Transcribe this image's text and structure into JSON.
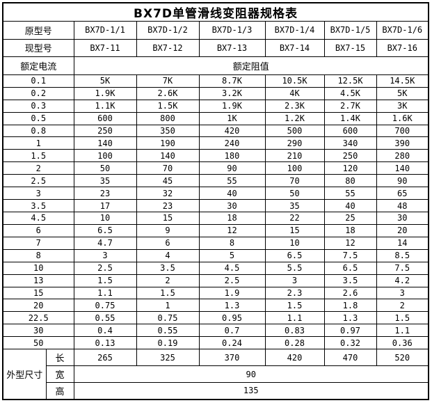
{
  "title": "BX7D单管滑线变阻器规格表",
  "headers": {
    "original_model_label": "原型号",
    "current_model_label": "现型号",
    "rated_current_label": "额定电流",
    "rated_resistance_label": "额定阻值",
    "dimensions_label": "外型尺寸",
    "length_label": "长",
    "width_label": "宽",
    "height_label": "高"
  },
  "original_models": [
    "BX7D-1/1",
    "BX7D-1/2",
    "BX7D-1/3",
    "BX7D-1/4",
    "BX7D-1/5",
    "BX7D-1/6"
  ],
  "current_models": [
    "BX7-11",
    "BX7-12",
    "BX7-13",
    "BX7-14",
    "BX7-15",
    "BX7-16"
  ],
  "resistance_rows": [
    {
      "current": "0.1",
      "values": [
        "5K",
        "7K",
        "8.7K",
        "10.5K",
        "12.5K",
        "14.5K"
      ]
    },
    {
      "current": "0.2",
      "values": [
        "1.9K",
        "2.6K",
        "3.2K",
        "4K",
        "4.5K",
        "5K"
      ]
    },
    {
      "current": "0.3",
      "values": [
        "1.1K",
        "1.5K",
        "1.9K",
        "2.3K",
        "2.7K",
        "3K"
      ]
    },
    {
      "current": "0.5",
      "values": [
        "600",
        "800",
        "1K",
        "1.2K",
        "1.4K",
        "1.6K"
      ]
    },
    {
      "current": "0.8",
      "values": [
        "250",
        "350",
        "420",
        "500",
        "600",
        "700"
      ]
    },
    {
      "current": "1",
      "values": [
        "140",
        "190",
        "240",
        "290",
        "340",
        "390"
      ]
    },
    {
      "current": "1.5",
      "values": [
        "100",
        "140",
        "180",
        "210",
        "250",
        "280"
      ]
    },
    {
      "current": "2",
      "values": [
        "50",
        "70",
        "90",
        "100",
        "120",
        "140"
      ]
    },
    {
      "current": "2.5",
      "values": [
        "35",
        "45",
        "55",
        "70",
        "80",
        "90"
      ]
    },
    {
      "current": "3",
      "values": [
        "23",
        "32",
        "40",
        "50",
        "55",
        "65"
      ]
    },
    {
      "current": "3.5",
      "values": [
        "17",
        "23",
        "30",
        "35",
        "40",
        "48"
      ]
    },
    {
      "current": "4.5",
      "values": [
        "10",
        "15",
        "18",
        "22",
        "25",
        "30"
      ]
    },
    {
      "current": "6",
      "values": [
        "6.5",
        "9",
        "12",
        "15",
        "18",
        "20"
      ]
    },
    {
      "current": "7",
      "values": [
        "4.7",
        "6",
        "8",
        "10",
        "12",
        "14"
      ]
    },
    {
      "current": "8",
      "values": [
        "3",
        "4",
        "5",
        "6.5",
        "7.5",
        "8.5"
      ]
    },
    {
      "current": "10",
      "values": [
        "2.5",
        "3.5",
        "4.5",
        "5.5",
        "6.5",
        "7.5"
      ]
    },
    {
      "current": "13",
      "values": [
        "1.5",
        "2",
        "2.5",
        "3",
        "3.5",
        "4.2"
      ]
    },
    {
      "current": "15",
      "values": [
        "1.1",
        "1.5",
        "1.9",
        "2.3",
        "2.6",
        "3"
      ]
    },
    {
      "current": "20",
      "values": [
        "0.75",
        "1",
        "1.3",
        "1.5",
        "1.8",
        "2"
      ]
    },
    {
      "current": "22.5",
      "values": [
        "0.55",
        "0.75",
        "0.95",
        "1.1",
        "1.3",
        "1.5"
      ]
    },
    {
      "current": "30",
      "values": [
        "0.4",
        "0.55",
        "0.7",
        "0.83",
        "0.97",
        "1.1"
      ]
    },
    {
      "current": "50",
      "values": [
        "0.13",
        "0.19",
        "0.24",
        "0.28",
        "0.32",
        "0.36"
      ]
    }
  ],
  "dimensions": {
    "length_values": [
      "265",
      "325",
      "370",
      "420",
      "470",
      "520"
    ],
    "width_value": "90",
    "height_value": "135"
  },
  "colors": {
    "border": "#000000",
    "background": "#ffffff",
    "text": "#000000"
  }
}
